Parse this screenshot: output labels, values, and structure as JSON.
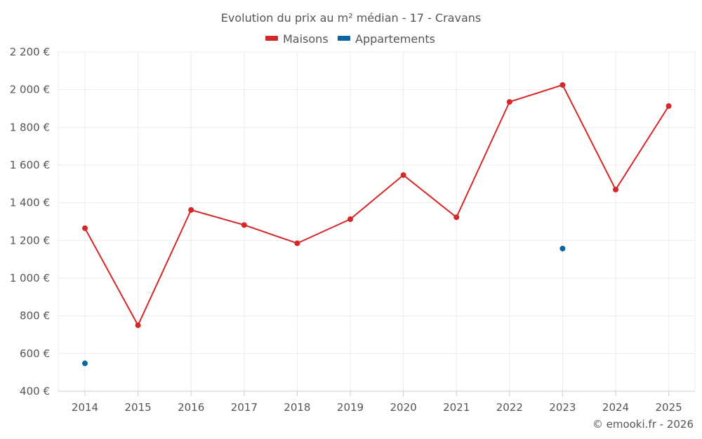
{
  "chart_data": {
    "type": "line",
    "title": "Evolution du prix au m² médian - 17 - Cravans",
    "categories": [
      "2014",
      "2015",
      "2016",
      "2017",
      "2018",
      "2019",
      "2020",
      "2021",
      "2022",
      "2023",
      "2024",
      "2025"
    ],
    "series": [
      {
        "name": "Maisons",
        "color": "#d62728",
        "values": [
          1265,
          750,
          1362,
          1282,
          1185,
          1313,
          1547,
          1323,
          1935,
          2025,
          1470,
          1913
        ]
      },
      {
        "name": "Appartements",
        "color": "#0a66a0",
        "values": [
          548,
          null,
          null,
          null,
          null,
          null,
          null,
          null,
          null,
          1157,
          null,
          null
        ]
      }
    ],
    "ylim": [
      400,
      2200
    ],
    "yticks": [
      400,
      600,
      800,
      1000,
      1200,
      1400,
      1600,
      1800,
      2000,
      2200
    ],
    "ytick_labels": [
      "400 €",
      "600 €",
      "800 €",
      "1 000 €",
      "1 200 €",
      "1 400 €",
      "1 600 €",
      "1 800 €",
      "2 000 €",
      "2 200 €"
    ],
    "xlabel": "",
    "ylabel": "",
    "grid": true,
    "legend_position": "top-center"
  },
  "credit": "© emooki.fr - 2026"
}
